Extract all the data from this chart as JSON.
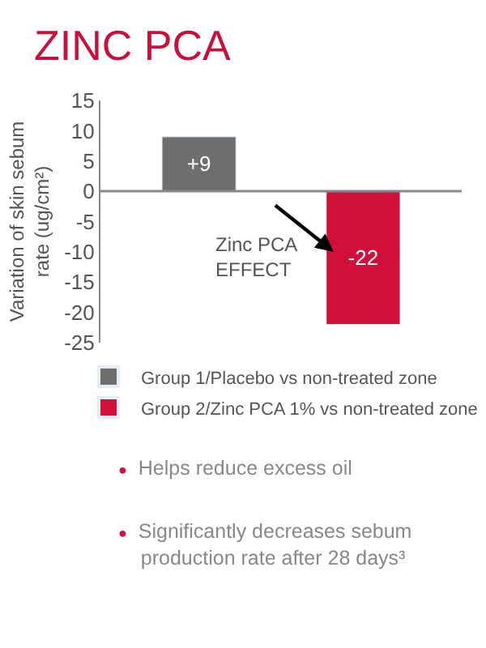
{
  "chart_data": {
    "type": "bar",
    "title": "ZINC PCA",
    "ylabel": "Variation of skin sebum rate (ug/cm²)",
    "categories": [
      null,
      null
    ],
    "series": [
      {
        "name": "Group 1/Placebo vs non-treated zone",
        "color": "#6d6e70",
        "values": [
          9,
          null
        ],
        "value_labels": [
          "+9",
          null
        ]
      },
      {
        "name": "Group 2/Zinc PCA 1% vs non-treated zone",
        "color": "#d0103a",
        "values": [
          null,
          -22
        ],
        "value_labels": [
          null,
          "-22"
        ]
      }
    ],
    "ylim": [
      -25,
      15
    ],
    "yticks": [
      -25,
      -20,
      -15,
      -10,
      -5,
      0,
      5,
      10,
      15
    ],
    "legend": "bottom",
    "ref_lines": [
      {
        "axis": "y",
        "value": 0,
        "color": "#888888"
      }
    ],
    "annotations": [
      "Zinc PCA EFFECT",
      "● Helps reduce excess oil",
      "● Significantly decreases sebum production rate after 28 days³"
    ]
  }
}
